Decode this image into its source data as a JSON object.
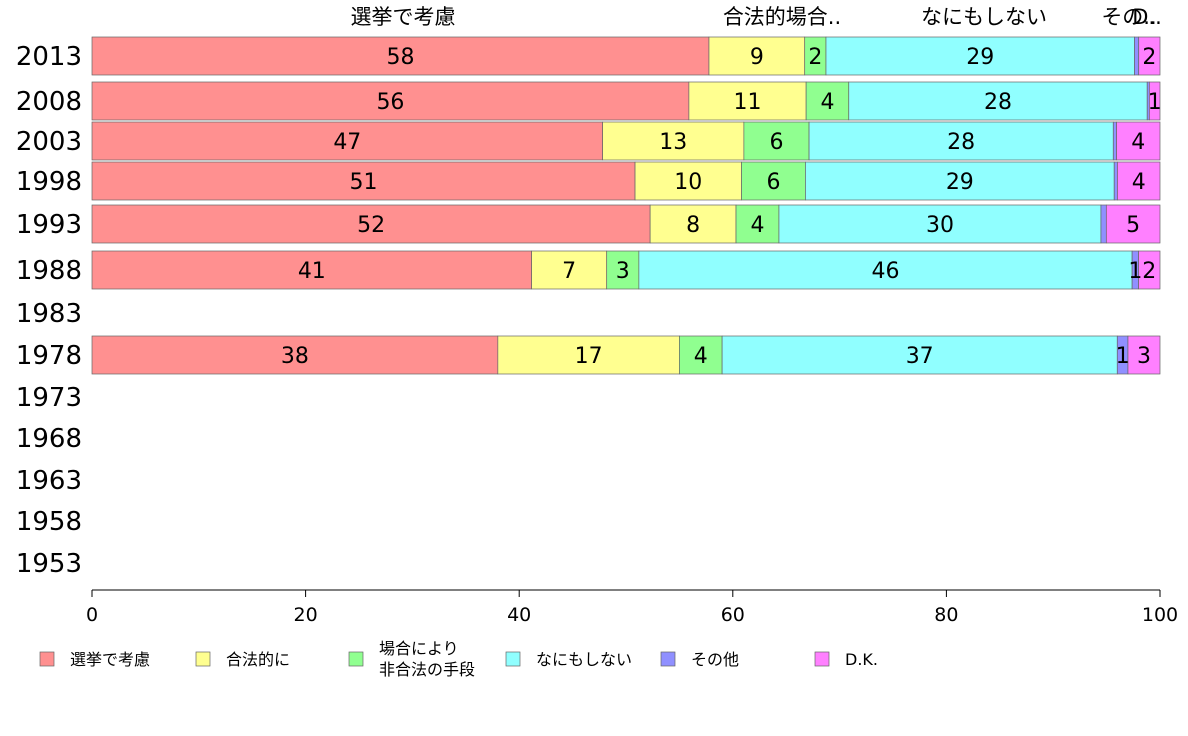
{
  "chart_data": {
    "type": "bar",
    "orientation": "horizontal",
    "stacked": true,
    "categories": [
      "2013",
      "2008",
      "2003",
      "1998",
      "1993",
      "1988",
      "1983",
      "1978",
      "1973",
      "1968",
      "1963",
      "1958",
      "1953"
    ],
    "series": [
      {
        "name": "選挙で考慮",
        "color": "#ff9090",
        "values": [
          58,
          56,
          47,
          51,
          52,
          41,
          null,
          38,
          null,
          null,
          null,
          null,
          null
        ]
      },
      {
        "name": "合法的に",
        "color": "#ffff90",
        "values": [
          9,
          11,
          13,
          10,
          8,
          7,
          null,
          17,
          null,
          null,
          null,
          null,
          null
        ]
      },
      {
        "name": "場合により非合法の手段",
        "legend_lines": [
          "場合により",
          "非合法の手段"
        ],
        "color": "#90ff90",
        "values": [
          2,
          4,
          6,
          6,
          4,
          3,
          null,
          4,
          null,
          null,
          null,
          null,
          null
        ]
      },
      {
        "name": "なにもしない",
        "color": "#90ffff",
        "values": [
          29,
          28,
          28,
          29,
          30,
          46,
          null,
          37,
          null,
          null,
          null,
          null,
          null
        ]
      },
      {
        "name": "その他",
        "color": "#9090ff",
        "values": [
          0.4,
          0.2,
          0.3,
          0.3,
          0.5,
          0.6,
          null,
          1,
          null,
          null,
          null,
          null,
          null
        ]
      },
      {
        "name": "D.K.",
        "color": "#ff80ff",
        "values": [
          2,
          1,
          4,
          4,
          5,
          2,
          null,
          3,
          null,
          null,
          null,
          null,
          null
        ]
      }
    ],
    "bar_labels": [
      [
        "58",
        "9",
        "2",
        "29",
        "",
        "2"
      ],
      [
        "56",
        "11",
        "4",
        "28",
        "",
        "1"
      ],
      [
        "47",
        "13",
        "6",
        "28",
        "",
        "4"
      ],
      [
        "51",
        "10",
        "6",
        "29",
        "",
        "4"
      ],
      [
        "52",
        "8",
        "4",
        "30",
        "",
        "5"
      ],
      [
        "41",
        "7",
        "3",
        "46",
        "1",
        "2"
      ],
      [],
      [
        "38",
        "17",
        "4",
        "37",
        "1",
        "3"
      ],
      [],
      [],
      [],
      [],
      []
    ],
    "column_headers": [
      "選挙で考慮",
      "合法的場合..",
      "なにもしない",
      "その..",
      "D.."
    ],
    "xlim": [
      0,
      100
    ],
    "xticks": [
      0,
      20,
      40,
      60,
      80,
      100
    ],
    "grid": false,
    "legend_position": "bottom"
  }
}
